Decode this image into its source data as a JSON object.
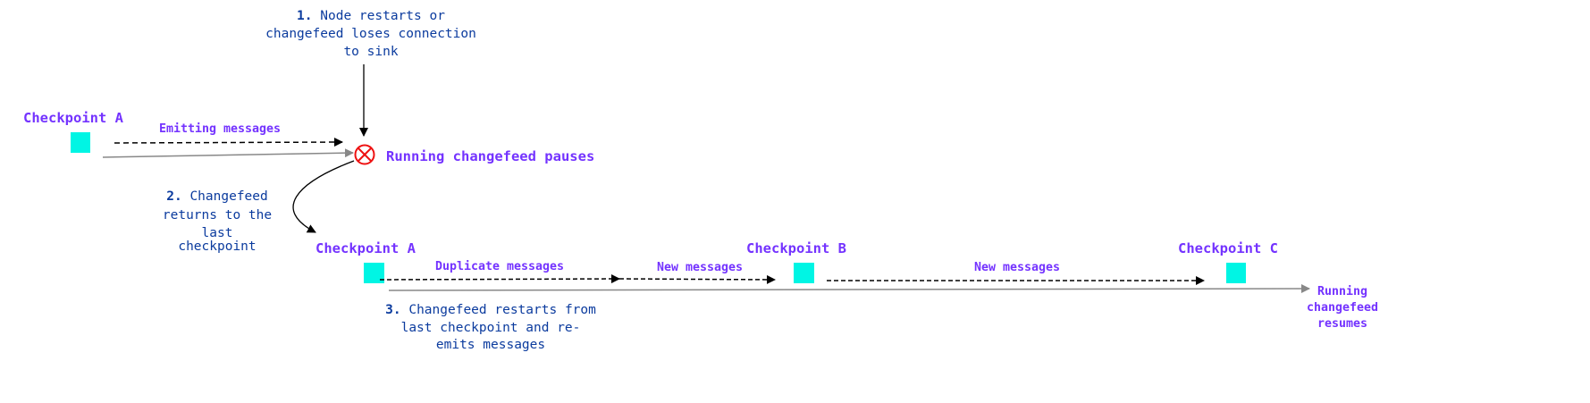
{
  "colors": {
    "purple": "#7433ff",
    "note_blue": "#0b3b9e",
    "checkpoint_fill": "#00f5e4",
    "error_red": "#ee1111",
    "timeline_gray": "#888888"
  },
  "step1": {
    "number": "1.",
    "lines": [
      "Node restarts or",
      "changefeed loses connection",
      "to sink"
    ]
  },
  "step2": {
    "number": "2.",
    "lines": [
      "Changefeed",
      "returns to the",
      "last",
      "checkpoint"
    ]
  },
  "step3": {
    "number": "3.",
    "lines": [
      "Changefeed restarts from",
      "last checkpoint and re-",
      "emits messages"
    ]
  },
  "top": {
    "checkpoint": "Checkpoint A",
    "emitting": "Emitting messages",
    "paused": "Running changefeed pauses",
    "error_icon": "circle-x-icon"
  },
  "bottom": {
    "checkpoints": [
      "Checkpoint A",
      "Checkpoint B",
      "Checkpoint C"
    ],
    "segments": [
      "Duplicate messages",
      "New messages",
      "New messages"
    ],
    "resumes": [
      "Running",
      "changefeed",
      "resumes"
    ]
  }
}
